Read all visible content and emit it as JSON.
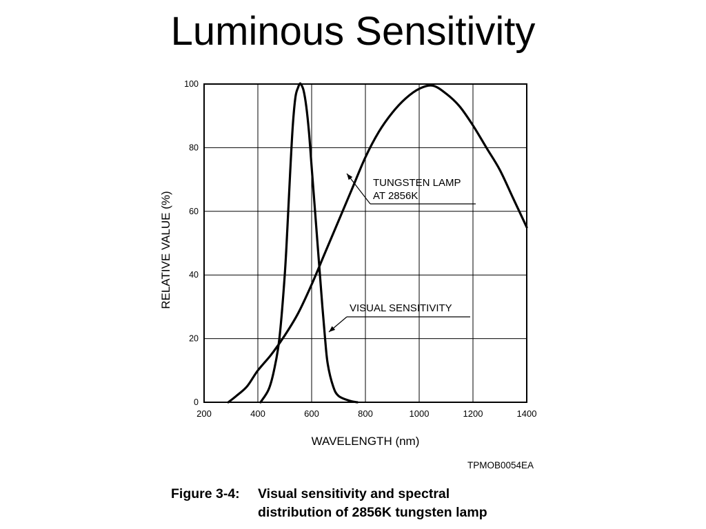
{
  "slide": {
    "title": "Luminous Sensitivity"
  },
  "figure": {
    "code": "TPMOB0054EA",
    "caption_number": "Figure 3-4:",
    "caption_line1": "Visual sensitivity and spectral",
    "caption_line2": "distribution of 2856K tungsten lamp"
  },
  "chart_data": {
    "type": "line",
    "xlabel": "WAVELENGTH (nm)",
    "ylabel": "RELATIVE VALUE (%)",
    "xlim": [
      200,
      1400
    ],
    "ylim": [
      0,
      100
    ],
    "xticks": [
      200,
      400,
      600,
      800,
      1000,
      1200,
      1400
    ],
    "yticks": [
      0,
      20,
      40,
      60,
      80,
      100
    ],
    "grid": true,
    "line_color": "#000000",
    "annotations": [
      {
        "line1": "TUNGSTEN LAMP",
        "line2": "AT 2856K",
        "series": "tungsten"
      },
      {
        "line1": "VISUAL SENSITIVITY",
        "line2": "",
        "series": "visual"
      }
    ],
    "series": [
      {
        "id": "visual",
        "x": [
          410,
          440,
          460,
          480,
          500,
          510,
          520,
          530,
          540,
          550,
          555,
          560,
          570,
          580,
          590,
          600,
          610,
          620,
          630,
          640,
          650,
          660,
          680,
          700,
          740,
          770
        ],
        "y": [
          0,
          4,
          10,
          20,
          40,
          55,
          72,
          87,
          96,
          99,
          100,
          100,
          98,
          93,
          85,
          74,
          63,
          52,
          41,
          30,
          20,
          12,
          5,
          2,
          0.5,
          0
        ]
      },
      {
        "id": "tungsten",
        "x": [
          290,
          320,
          360,
          400,
          450,
          500,
          550,
          600,
          650,
          700,
          750,
          800,
          850,
          900,
          950,
          1000,
          1050,
          1100,
          1150,
          1200,
          1250,
          1300,
          1350,
          1400
        ],
        "y": [
          0,
          2,
          5,
          10,
          15,
          21,
          28,
          37,
          47,
          57,
          67,
          77,
          85,
          91,
          95.5,
          98.5,
          99.5,
          97,
          93,
          87,
          80,
          73,
          64,
          55
        ]
      }
    ]
  }
}
